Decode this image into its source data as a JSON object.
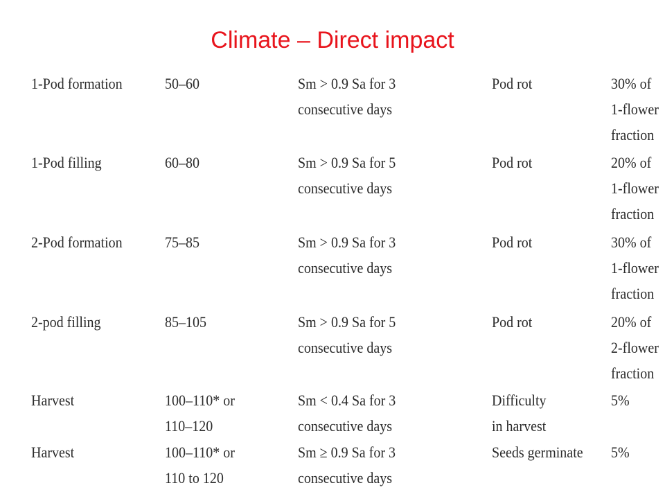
{
  "header": {
    "title": "Climate – Direct impact"
  },
  "table": {
    "rows": [
      [
        [
          "1-Pod formation"
        ],
        [
          "50–60"
        ],
        [
          "Sm > 0.9 Sa for 3",
          "consecutive days"
        ],
        [
          "Pod rot"
        ],
        [
          "30% of",
          "1-flower",
          "fraction"
        ]
      ],
      [
        [
          "1-Pod filling"
        ],
        [
          "60–80"
        ],
        [
          "Sm > 0.9 Sa for 5",
          "consecutive days"
        ],
        [
          "Pod rot"
        ],
        [
          "20% of",
          "1-flower",
          "fraction"
        ]
      ],
      [
        [
          "2-Pod formation"
        ],
        [
          "75–85"
        ],
        [
          "Sm > 0.9 Sa for 3",
          "consecutive days"
        ],
        [
          "Pod rot"
        ],
        [
          "30% of",
          "1-flower",
          "fraction"
        ]
      ],
      [
        [
          "2-pod filling"
        ],
        [
          "85–105"
        ],
        [
          "Sm > 0.9 Sa for 5",
          "consecutive days"
        ],
        [
          "Pod rot"
        ],
        [
          "20% of",
          "2-flower",
          "fraction"
        ]
      ],
      [
        [
          "Harvest"
        ],
        [
          "100–110* or",
          "110–120"
        ],
        [
          "Sm < 0.4 Sa for 3",
          "consecutive days"
        ],
        [
          "Difficulty",
          "in harvest"
        ],
        [
          "5%"
        ]
      ],
      [
        [
          "Harvest"
        ],
        [
          "100–110* or",
          "110 to 120"
        ],
        [
          "Sm ≥ 0.9 Sa for 3",
          "consecutive days"
        ],
        [
          "Seeds germinate"
        ],
        [
          "5%"
        ]
      ]
    ]
  }
}
